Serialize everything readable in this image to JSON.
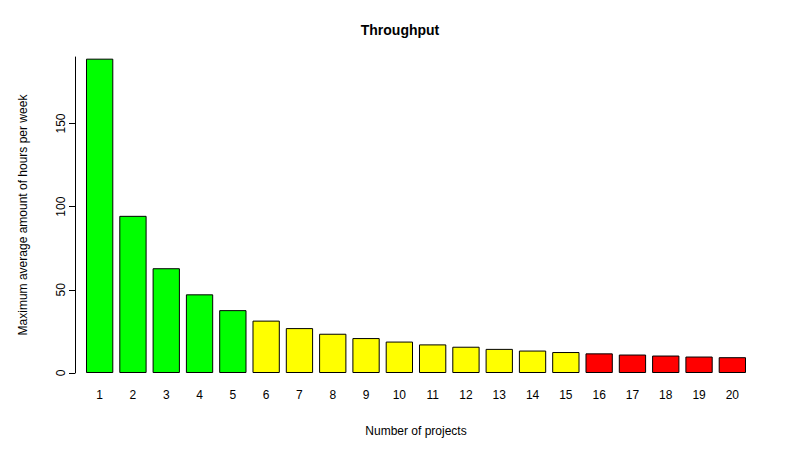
{
  "chart_data": {
    "type": "bar",
    "title": "Throughput",
    "x_label": "Number of projects",
    "y_label": "Maximum average amount of hours per week",
    "categories": [
      "1",
      "2",
      "3",
      "4",
      "5",
      "6",
      "7",
      "8",
      "9",
      "10",
      "11",
      "12",
      "13",
      "14",
      "15",
      "16",
      "17",
      "18",
      "19",
      "20"
    ],
    "values": [
      189,
      94.5,
      63,
      47.3,
      37.8,
      31.5,
      27,
      23.6,
      21,
      18.9,
      17.2,
      15.8,
      14.5,
      13.5,
      12.6,
      11.8,
      11.1,
      10.5,
      9.9,
      9.5
    ],
    "colors": [
      "#00ff00",
      "#00ff00",
      "#00ff00",
      "#00ff00",
      "#00ff00",
      "#ffff00",
      "#ffff00",
      "#ffff00",
      "#ffff00",
      "#ffff00",
      "#ffff00",
      "#ffff00",
      "#ffff00",
      "#ffff00",
      "#ffff00",
      "#ff0000",
      "#ff0000",
      "#ff0000",
      "#ff0000",
      "#ff0000"
    ],
    "ylim": [
      0,
      190
    ],
    "yticks": [
      0,
      50,
      100,
      150
    ],
    "grid": false
  }
}
